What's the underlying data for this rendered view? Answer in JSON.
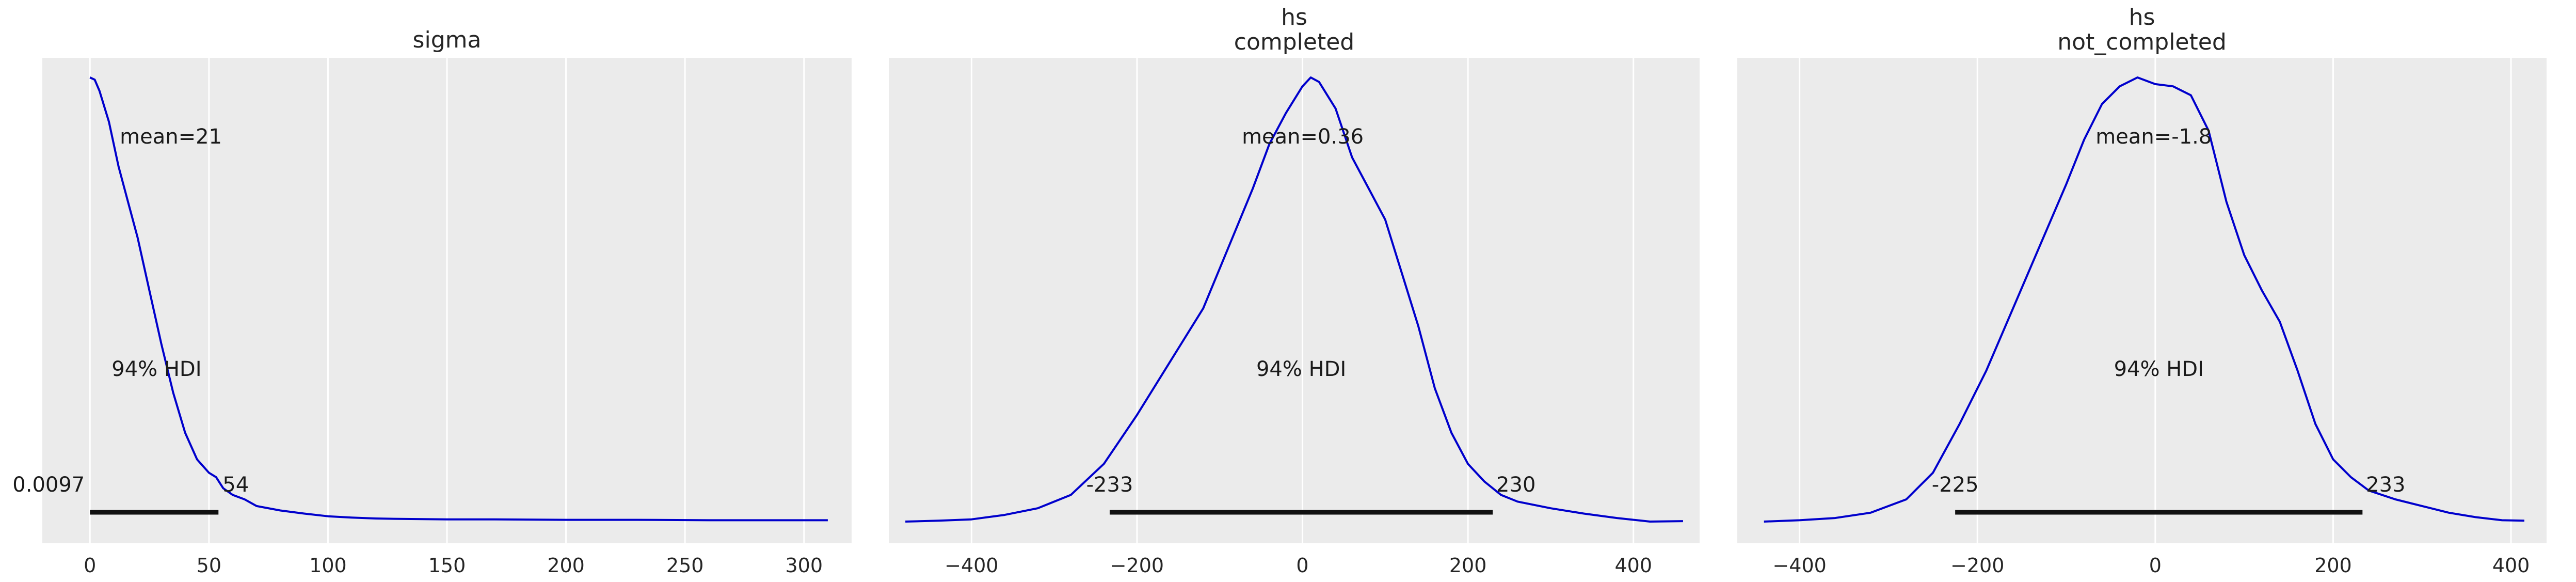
{
  "chart_data": [
    {
      "type": "line",
      "title": "sigma",
      "xlim": [
        -20,
        320
      ],
      "xticks": [
        0,
        50,
        100,
        150,
        200,
        250,
        300
      ],
      "tick_labels": [
        "0",
        "50",
        "100",
        "150",
        "200",
        "250",
        "300"
      ],
      "ylim": [
        0,
        1.0
      ],
      "grid": true,
      "mean_label": "mean=21",
      "hdi_label": "94% HDI",
      "hdi": [
        0.0097,
        54
      ],
      "hdi_low_label": "0.0097",
      "hdi_high_label": "54",
      "series": [
        {
          "color": "#0000cc",
          "x": [
            0,
            2,
            4,
            8,
            12,
            16,
            20,
            25,
            30,
            35,
            40,
            45,
            50,
            53,
            56,
            60,
            65,
            70,
            80,
            90,
            100,
            110,
            120,
            130,
            150,
            170,
            200,
            230,
            260,
            290,
            310
          ],
          "y": [
            1.0,
            0.995,
            0.97,
            0.9,
            0.8,
            0.72,
            0.64,
            0.52,
            0.4,
            0.29,
            0.2,
            0.14,
            0.11,
            0.1,
            0.075,
            0.06,
            0.05,
            0.035,
            0.025,
            0.018,
            0.012,
            0.009,
            0.007,
            0.006,
            0.005,
            0.005,
            0.004,
            0.004,
            0.003,
            0.003,
            0.003
          ]
        }
      ]
    },
    {
      "type": "line",
      "title": "hs\ncompleted",
      "title_lines": [
        "hs",
        "completed"
      ],
      "xlim": [
        -500,
        480
      ],
      "xticks": [
        -400,
        -200,
        0,
        200,
        400
      ],
      "tick_labels": [
        "−400",
        "−200",
        "0",
        "200",
        "400"
      ],
      "ylim": [
        0,
        1.0
      ],
      "grid": true,
      "mean_label": "mean=0.36",
      "hdi_label": "94% HDI",
      "hdi": [
        -233,
        230
      ],
      "hdi_low_label": "-233",
      "hdi_high_label": "230",
      "series": [
        {
          "color": "#0000cc",
          "x": [
            -480,
            -440,
            -400,
            -360,
            -320,
            -280,
            -240,
            -200,
            -160,
            -120,
            -80,
            -60,
            -40,
            -20,
            0,
            10,
            20,
            40,
            60,
            80,
            100,
            120,
            140,
            160,
            180,
            200,
            220,
            240,
            260,
            300,
            340,
            380,
            420,
            460
          ],
          "y": [
            0.0,
            0.002,
            0.005,
            0.015,
            0.03,
            0.06,
            0.13,
            0.24,
            0.36,
            0.48,
            0.66,
            0.75,
            0.85,
            0.92,
            0.98,
            1.0,
            0.99,
            0.93,
            0.82,
            0.75,
            0.68,
            0.56,
            0.44,
            0.3,
            0.2,
            0.13,
            0.09,
            0.06,
            0.045,
            0.03,
            0.018,
            0.008,
            0.0,
            0.001
          ]
        }
      ]
    },
    {
      "type": "line",
      "title": "hs\nnot_completed",
      "title_lines": [
        "hs",
        "not_completed"
      ],
      "xlim": [
        -470,
        440
      ],
      "xticks": [
        -400,
        -200,
        0,
        200,
        400
      ],
      "tick_labels": [
        "−400",
        "−200",
        "0",
        "200",
        "400"
      ],
      "ylim": [
        0,
        1.0
      ],
      "grid": true,
      "mean_label": "mean=-1.8",
      "hdi_label": "94% HDI",
      "hdi": [
        -225,
        233
      ],
      "hdi_low_label": "-225",
      "hdi_high_label": "233",
      "series": [
        {
          "color": "#0000cc",
          "x": [
            -440,
            -400,
            -360,
            -320,
            -280,
            -250,
            -220,
            -190,
            -160,
            -130,
            -100,
            -80,
            -60,
            -40,
            -20,
            0,
            20,
            40,
            60,
            80,
            100,
            120,
            140,
            160,
            180,
            200,
            220,
            240,
            270,
            300,
            330,
            360,
            390,
            415
          ],
          "y": [
            0.0,
            0.003,
            0.008,
            0.02,
            0.05,
            0.11,
            0.22,
            0.34,
            0.48,
            0.62,
            0.76,
            0.86,
            0.94,
            0.98,
            1.0,
            0.985,
            0.98,
            0.96,
            0.88,
            0.72,
            0.6,
            0.52,
            0.45,
            0.34,
            0.22,
            0.14,
            0.1,
            0.07,
            0.05,
            0.035,
            0.02,
            0.01,
            0.003,
            0.002
          ]
        }
      ]
    }
  ]
}
